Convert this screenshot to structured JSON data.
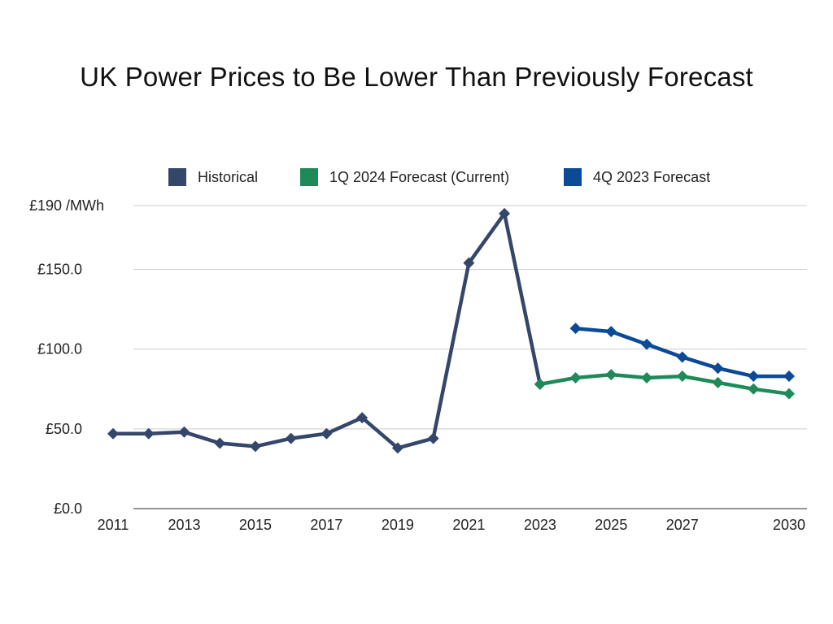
{
  "chart_data": {
    "type": "line",
    "title": "UK Power Prices to Be Lower Than Previously Forecast",
    "xlabel": "",
    "ylabel": "",
    "y_top_label": "£190 /MWh",
    "y_tick_labels": [
      "£0.0",
      "£50.0",
      "£100.0",
      "£150.0"
    ],
    "y_ticks": [
      0,
      50,
      100,
      150
    ],
    "ylim": [
      0,
      190
    ],
    "xlim": [
      2011,
      2030
    ],
    "x_tick_labels": [
      "2011",
      "2013",
      "2015",
      "2017",
      "2019",
      "2021",
      "2023",
      "2025",
      "2027",
      "2030"
    ],
    "grid": true,
    "legend_position": "top",
    "series": [
      {
        "name": "Historical",
        "color": "#34466a",
        "x": [
          2011,
          2012,
          2013,
          2014,
          2015,
          2016,
          2017,
          2018,
          2019,
          2020,
          2021,
          2022,
          2023
        ],
        "values": [
          47,
          47,
          48,
          41,
          39,
          44,
          47,
          57,
          38,
          44,
          154,
          185,
          78
        ]
      },
      {
        "name": "1Q 2024 Forecast (Current)",
        "color": "#1e8a59",
        "x": [
          2023,
          2024,
          2025,
          2026,
          2027,
          2028,
          2029,
          2030
        ],
        "values": [
          78,
          82,
          84,
          82,
          83,
          79,
          75,
          72
        ]
      },
      {
        "name": "4Q 2023 Forecast",
        "color": "#0a4a96",
        "x": [
          2024,
          2025,
          2026,
          2027,
          2028,
          2029,
          2030
        ],
        "values": [
          113,
          111,
          103,
          95,
          88,
          83,
          83
        ]
      }
    ]
  }
}
